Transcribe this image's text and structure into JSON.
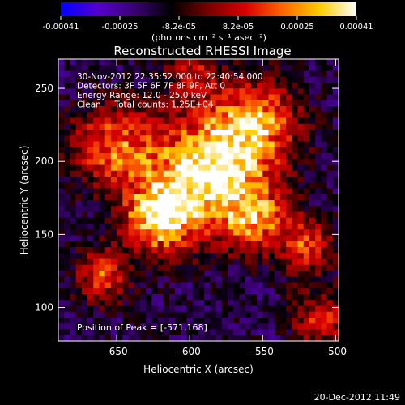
{
  "chart_data": {
    "type": "heatmap",
    "title": "Reconstructed RHESSI Image",
    "xlabel": "Heliocentric X (arcsec)",
    "ylabel": "Heliocentric Y (arcsec)",
    "xlim": [
      -690,
      -498
    ],
    "ylim": [
      77,
      270
    ],
    "xticks": [
      -650,
      -600,
      -550,
      -500
    ],
    "yticks": [
      100,
      150,
      200,
      250
    ],
    "colorbar": {
      "ticks": [
        "-0.00041",
        "-0.00025",
        "-8.2e-05",
        "8.2e-05",
        "0.00025",
        "0.00041"
      ],
      "range": [
        -0.00041,
        0.00041
      ],
      "unit_label": "(photons cm⁻² s⁻¹ asec⁻²)",
      "colors": [
        "#0000ff",
        "#5500cc",
        "#3a0070",
        "#000000",
        "#7a0000",
        "#d90000",
        "#ff6600",
        "#ffcc00",
        "#ffffff"
      ]
    },
    "annotations": [
      "30-Nov-2012 22:35:52.000 to 22:40:54.000",
      "Detectors: 3F 5F 6F 7F 8F 9F, Att 0",
      "Energy Range: 12.0 - 25.0 keV",
      "Clean     Total counts: 1.25E+04"
    ],
    "peak_label": "Position of Peak = [-571,168]",
    "peak": {
      "x": -571,
      "y": 168
    },
    "sources": [
      {
        "x": -585,
        "y": 195,
        "amp": 1.0,
        "sigma": 28
      },
      {
        "x": -620,
        "y": 162,
        "amp": 0.9,
        "sigma": 17
      },
      {
        "x": -652,
        "y": 210,
        "amp": 0.65,
        "sigma": 20
      },
      {
        "x": -553,
        "y": 228,
        "amp": 0.6,
        "sigma": 20
      },
      {
        "x": -555,
        "y": 160,
        "amp": 0.6,
        "sigma": 15
      },
      {
        "x": -520,
        "y": 142,
        "amp": 0.55,
        "sigma": 13
      },
      {
        "x": -660,
        "y": 122,
        "amp": 0.55,
        "sigma": 13
      },
      {
        "x": -510,
        "y": 92,
        "amp": 0.5,
        "sigma": 14
      },
      {
        "x": -598,
        "y": 262,
        "amp": 0.4,
        "sigma": 12
      }
    ]
  },
  "footer": {
    "timestamp": "20-Dec-2012 11:49"
  }
}
